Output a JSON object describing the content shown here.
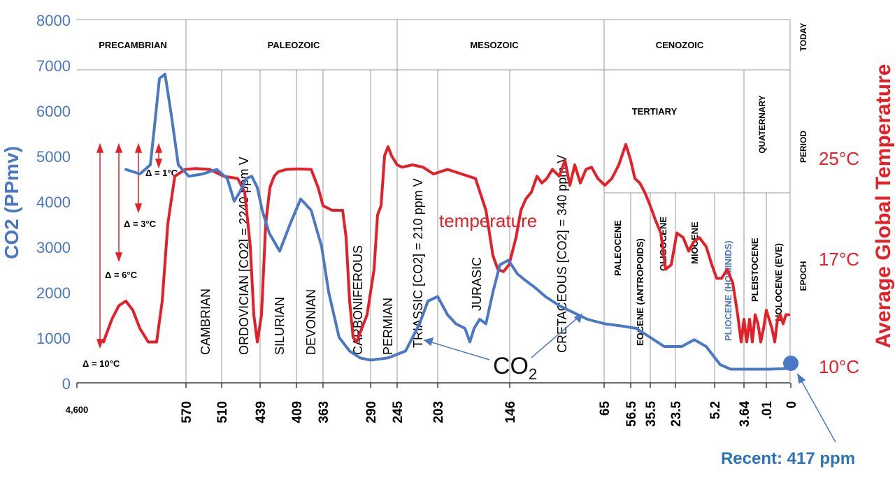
{
  "chart_data": {
    "type": "line",
    "title": "",
    "xlabel": "",
    "ylabel": "CO2 (PPmv)",
    "ylabel_right": "Average Global Temperature",
    "ylim": [
      0,
      8000
    ],
    "y_ticks": [
      "0",
      "1000",
      "2000",
      "3000",
      "4000",
      "5000",
      "6000",
      "7000",
      "8000"
    ],
    "temp_ticks": [
      "25°C",
      "17°C",
      "10°C"
    ],
    "x_ticks": [
      "4,600",
      "570",
      "510",
      "439",
      "409",
      "363",
      "290",
      "245",
      "203",
      "146",
      "65",
      "56.5",
      "35.5",
      "23.5",
      "5.2",
      "3.64",
      ".01",
      "0"
    ],
    "eras": [
      "PRECAMBRIAN",
      "PALEOZOIC",
      "MESOZOIC",
      "CENOZOIC"
    ],
    "today_label": "TODAY",
    "row_labels": [
      "PERIOD",
      "EPOCH"
    ],
    "periods": [
      "CAMBRIAN",
      "ORDOVICIAN [CO2] = 2240 ppm V",
      "SILURIAN",
      "DEVONIAN",
      "CARBONIFEROUS",
      "PERMIAN",
      "TRIASSIC [CO2] = 210 ppm V",
      "JURASIC",
      "CRETACEOUS [CO2] = 340 ppm V"
    ],
    "cenozoic_periods": [
      "TERTIARY",
      "QUATERNARY"
    ],
    "epochs": [
      "PALEOCENE",
      "EOCENE (ANTROPOIDS)",
      "OLIGOCENE",
      "MIOCENE",
      "PLIOCENE (HOMINIDS)",
      "PLEISTOCENE",
      "HOLOCENE (EVE)"
    ],
    "delta_labels": [
      "Δ = 1°C",
      "Δ = 3°C",
      "Δ = 6°C",
      "Δ = 10°C"
    ],
    "series": [
      {
        "name": "CO2",
        "label": "CO",
        "label_sub": "2",
        "color": "#4a78c2",
        "x": [
          180,
          200,
          215,
          222,
          228,
          236,
          245,
          255,
          270,
          290,
          310,
          325,
          335,
          343,
          352,
          360,
          368,
          375,
          385,
          400,
          415,
          430,
          445,
          460,
          470,
          485,
          500,
          515,
          530,
          555,
          580,
          600,
          612,
          626,
          640,
          652,
          665,
          672,
          678,
          686,
          695,
          705,
          715,
          727,
          740,
          752,
          765,
          780,
          800,
          820,
          840,
          865,
          890,
          910,
          930,
          950,
          975,
          993,
          1010,
          1030,
          1045,
          1070,
          1100,
          1131
        ],
        "y": [
          4700,
          4600,
          4800,
          5800,
          6700,
          6800,
          5900,
          4800,
          4550,
          4600,
          4700,
          4500,
          4000,
          4200,
          4500,
          4550,
          4300,
          3800,
          3300,
          2900,
          3500,
          4050,
          3800,
          3000,
          2000,
          1000,
          700,
          550,
          500,
          550,
          700,
          1300,
          1800,
          1900,
          1500,
          1300,
          1200,
          900,
          1200,
          1400,
          1300,
          2000,
          2600,
          2700,
          2400,
          2250,
          2100,
          1900,
          1700,
          1550,
          1400,
          1300,
          1250,
          1200,
          1000,
          800,
          800,
          950,
          800,
          400,
          300,
          300,
          300,
          320
        ]
      },
      {
        "name": "temperature",
        "label": "temperature",
        "color": "#e32028",
        "x": [
          148,
          160,
          170,
          180,
          190,
          200,
          212,
          224,
          232,
          240,
          250,
          265,
          280,
          300,
          320,
          340,
          350,
          358,
          363,
          368,
          374,
          380,
          386,
          392,
          398,
          410,
          425,
          445,
          455,
          462,
          475,
          490,
          495,
          500,
          505,
          510,
          515,
          525,
          535,
          540,
          545,
          550,
          555,
          560,
          568,
          575,
          590,
          605,
          620,
          640,
          660,
          680,
          695,
          705,
          712,
          720,
          728,
          738,
          745,
          752,
          760,
          768,
          775,
          782,
          790,
          800,
          808,
          815,
          822,
          830,
          838,
          846,
          855,
          865,
          875,
          885,
          895,
          902,
          908,
          915,
          922,
          930,
          937,
          945,
          952,
          960,
          968,
          977,
          985,
          992,
          1000,
          1010,
          1018,
          1025,
          1032,
          1040,
          1048,
          1055,
          1060,
          1064,
          1068,
          1072,
          1076,
          1080,
          1084,
          1088,
          1092,
          1096,
          1100,
          1104,
          1108,
          1112,
          1116,
          1120,
          1124,
          1128
        ],
        "y": [
          900,
          1400,
          1700,
          1800,
          1600,
          1200,
          900,
          900,
          1800,
          3500,
          4550,
          4700,
          4720,
          4700,
          4550,
          4500,
          4200,
          3000,
          1500,
          900,
          1500,
          3500,
          4300,
          4550,
          4650,
          4700,
          4710,
          4700,
          4300,
          3900,
          3800,
          3800,
          3200,
          1800,
          1000,
          900,
          1100,
          1500,
          2500,
          3700,
          3900,
          5000,
          5200,
          5000,
          4800,
          4750,
          4800,
          4750,
          4600,
          4700,
          4600,
          4500,
          3800,
          2800,
          2500,
          2450,
          2600,
          3200,
          3800,
          4050,
          4200,
          4550,
          4400,
          4500,
          4700,
          4550,
          4900,
          4350,
          4800,
          4400,
          4700,
          4750,
          4500,
          4350,
          4500,
          4800,
          5250,
          4900,
          4500,
          4400,
          4200,
          3900,
          3600,
          3300,
          2500,
          2600,
          3300,
          3200,
          2900,
          3100,
          3200,
          3000,
          2600,
          2300,
          2300,
          2500,
          2200,
          1500,
          900,
          1400,
          900,
          1400,
          900,
          1500,
          1300,
          900,
          1200,
          1600,
          1400,
          1200,
          900,
          1400,
          1500,
          1300,
          1500,
          1500
        ]
      }
    ],
    "annotation": "Recent: 417 ppm"
  }
}
